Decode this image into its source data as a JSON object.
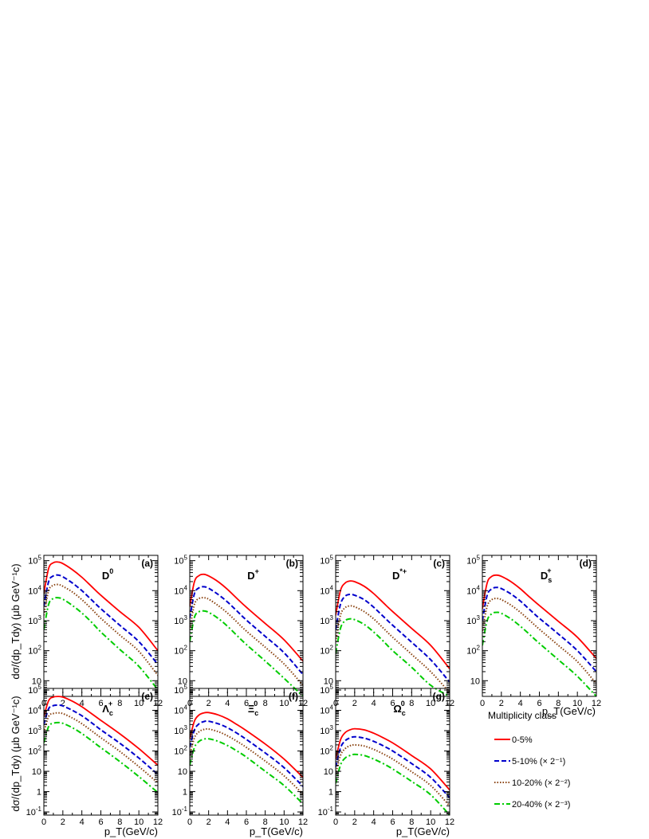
{
  "figure": {
    "ylabel_top": "dσ/(dp_Tdy) (μb GeV⁻¹c)",
    "ylabel_bottom": "dσ/(dp_Tdy) (μb GeV⁻¹c)",
    "xlabel": "p_T(GeV/c)"
  },
  "legend": {
    "title": "Multiplicity class",
    "entries": [
      {
        "label": "0-5%",
        "factor": "",
        "color": "#ff0000",
        "dash": "solid"
      },
      {
        "label": "5-10%",
        "factor": "(× 2⁻¹)",
        "color": "#0000cc",
        "dash": "dashed"
      },
      {
        "label": "10-20%",
        "factor": "(× 2⁻²)",
        "color": "#8b4513",
        "dash": "dotted"
      },
      {
        "label": "20-40%",
        "factor": "(× 2⁻³)",
        "color": "#00cc00",
        "dash": "dashdot"
      }
    ]
  },
  "chart_data": [
    {
      "type": "line",
      "panel": "(a)",
      "particle": "D⁰",
      "xlim": [
        0,
        12
      ],
      "ylim": [
        3,
        150000
      ],
      "yscale": "log",
      "x": [
        0,
        0.5,
        1,
        1.5,
        2,
        3,
        4,
        5,
        6,
        8,
        10,
        12
      ],
      "series": [
        {
          "name": "0-5%",
          "values": [
            8000,
            55000,
            85000,
            90000,
            80000,
            50000,
            28000,
            14000,
            7000,
            2000,
            600,
            100
          ]
        },
        {
          "name": "5-10%",
          "values": [
            3000,
            20000,
            31000,
            33000,
            29000,
            18000,
            10000,
            5000,
            2500,
            700,
            200,
            35
          ]
        },
        {
          "name": "10-20%",
          "values": [
            1500,
            10000,
            15000,
            16000,
            14000,
            9000,
            5000,
            2500,
            1200,
            330,
            95,
            15
          ]
        },
        {
          "name": "20-40%",
          "values": [
            500,
            3500,
            5500,
            5800,
            5200,
            3200,
            1800,
            900,
            420,
            110,
            30,
            5
          ]
        }
      ]
    },
    {
      "type": "line",
      "panel": "(b)",
      "particle": "D⁺",
      "xlim": [
        0,
        12
      ],
      "ylim": [
        3,
        150000
      ],
      "yscale": "log",
      "x": [
        0,
        0.5,
        1,
        1.5,
        2,
        3,
        4,
        5,
        6,
        8,
        10,
        12
      ],
      "series": [
        {
          "name": "0-5%",
          "values": [
            3000,
            20000,
            32000,
            35000,
            31000,
            20000,
            11000,
            5500,
            2800,
            800,
            230,
            45
          ]
        },
        {
          "name": "5-10%",
          "values": [
            1200,
            8000,
            12500,
            13500,
            12000,
            7500,
            4200,
            2100,
            1050,
            300,
            85,
            16
          ]
        },
        {
          "name": "10-20%",
          "values": [
            500,
            3500,
            5500,
            5800,
            5200,
            3200,
            1800,
            900,
            450,
            130,
            36,
            7
          ]
        },
        {
          "name": "20-40%",
          "values": [
            200,
            1300,
            2000,
            2100,
            1900,
            1200,
            650,
            320,
            160,
            45,
            12,
            3
          ]
        }
      ]
    },
    {
      "type": "line",
      "panel": "(c)",
      "particle": "D*⁺",
      "xlim": [
        0,
        12
      ],
      "ylim": [
        3,
        150000
      ],
      "yscale": "log",
      "x": [
        0,
        0.5,
        1,
        1.5,
        2,
        3,
        4,
        5,
        6,
        8,
        10,
        12
      ],
      "series": [
        {
          "name": "0-5%",
          "values": [
            1500,
            10000,
            18000,
            21000,
            20000,
            14000,
            8000,
            4000,
            2000,
            550,
            150,
            25
          ]
        },
        {
          "name": "5-10%",
          "values": [
            500,
            3500,
            6500,
            7500,
            7000,
            5000,
            2800,
            1400,
            700,
            190,
            50,
            9
          ]
        },
        {
          "name": "10-20%",
          "values": [
            200,
            1500,
            2700,
            3100,
            2900,
            2000,
            1150,
            570,
            280,
            75,
            20,
            4
          ]
        },
        {
          "name": "20-40%",
          "values": [
            80,
            550,
            1000,
            1150,
            1080,
            750,
            420,
            210,
            100,
            28,
            7,
            3
          ]
        }
      ]
    },
    {
      "type": "line",
      "panel": "(d)",
      "particle": "D_s⁺",
      "xlim": [
        0,
        12
      ],
      "ylim": [
        3,
        150000
      ],
      "yscale": "log",
      "x": [
        0,
        0.5,
        1,
        1.5,
        2,
        3,
        4,
        5,
        6,
        8,
        10,
        12
      ],
      "series": [
        {
          "name": "0-5%",
          "values": [
            2500,
            18000,
            30000,
            33000,
            30000,
            20000,
            11500,
            6000,
            3200,
            950,
            280,
            55
          ]
        },
        {
          "name": "5-10%",
          "values": [
            1000,
            7000,
            11500,
            12800,
            11700,
            7800,
            4500,
            2300,
            1200,
            360,
            100,
            20
          ]
        },
        {
          "name": "10-20%",
          "values": [
            450,
            3000,
            5000,
            5500,
            5000,
            3300,
            1900,
            1000,
            520,
            150,
            43,
            8
          ]
        },
        {
          "name": "20-40%",
          "values": [
            150,
            1000,
            1700,
            1900,
            1750,
            1150,
            650,
            340,
            175,
            50,
            14,
            3
          ]
        }
      ]
    },
    {
      "type": "line",
      "panel": "(e)",
      "particle": "Λ_c⁺",
      "xlim": [
        0,
        12
      ],
      "ylim": [
        0.07,
        120000
      ],
      "yscale": "log",
      "x": [
        0,
        0.5,
        1,
        1.5,
        2,
        3,
        4,
        5,
        6,
        8,
        10,
        12
      ],
      "series": [
        {
          "name": "0-5%",
          "values": [
            5000,
            30000,
            45000,
            48000,
            45000,
            28000,
            15000,
            7000,
            3200,
            700,
            130,
            20
          ]
        },
        {
          "name": "5-10%",
          "values": [
            2000,
            12000,
            17000,
            18000,
            16500,
            10000,
            5400,
            2500,
            1100,
            240,
            45,
            7
          ]
        },
        {
          "name": "10-20%",
          "values": [
            800,
            5000,
            7000,
            7500,
            6900,
            4200,
            2200,
            1000,
            450,
            95,
            17,
            2.7
          ]
        },
        {
          "name": "20-40%",
          "values": [
            250,
            1600,
            2300,
            2500,
            2300,
            1400,
            720,
            330,
            145,
            30,
            5.5,
            0.9
          ]
        }
      ]
    },
    {
      "type": "line",
      "panel": "(f)",
      "particle": "Ξ_c⁰",
      "xlim": [
        0,
        12
      ],
      "ylim": [
        0.07,
        120000
      ],
      "yscale": "log",
      "x": [
        0,
        0.5,
        1,
        1.5,
        2,
        3,
        4,
        5,
        6,
        8,
        10,
        12
      ],
      "series": [
        {
          "name": "0-5%",
          "values": [
            400,
            3000,
            6000,
            7500,
            7800,
            6000,
            3800,
            2000,
            1000,
            220,
            40,
            5
          ]
        },
        {
          "name": "5-10%",
          "values": [
            150,
            1100,
            2200,
            2800,
            2900,
            2200,
            1400,
            750,
            370,
            80,
            15,
            1.8
          ]
        },
        {
          "name": "10-20%",
          "values": [
            60,
            450,
            900,
            1150,
            1200,
            900,
            560,
            300,
            150,
            32,
            6,
            0.75
          ]
        },
        {
          "name": "20-40%",
          "values": [
            20,
            150,
            300,
            380,
            400,
            300,
            185,
            100,
            50,
            10,
            2,
            0.25
          ]
        }
      ]
    },
    {
      "type": "line",
      "panel": "(g)",
      "particle": "Ω_c⁰",
      "xlim": [
        0,
        12
      ],
      "ylim": [
        0.07,
        120000
      ],
      "yscale": "log",
      "x": [
        0,
        0.5,
        1,
        1.5,
        2,
        3,
        4,
        5,
        6,
        8,
        10,
        12
      ],
      "series": [
        {
          "name": "0-5%",
          "values": [
            40,
            350,
            800,
            1100,
            1250,
            1100,
            750,
            450,
            250,
            60,
            13,
            1.2
          ]
        },
        {
          "name": "5-10%",
          "values": [
            16,
            140,
            320,
            440,
            500,
            430,
            300,
            180,
            100,
            24,
            5,
            0.5
          ]
        },
        {
          "name": "10-20%",
          "values": [
            7,
            60,
            130,
            180,
            200,
            175,
            120,
            72,
            40,
            9.5,
            2,
            0.2
          ]
        },
        {
          "name": "20-40%",
          "values": [
            2.5,
            20,
            45,
            60,
            68,
            60,
            40,
            24,
            13,
            3.2,
            0.7,
            0.07
          ]
        }
      ]
    }
  ]
}
